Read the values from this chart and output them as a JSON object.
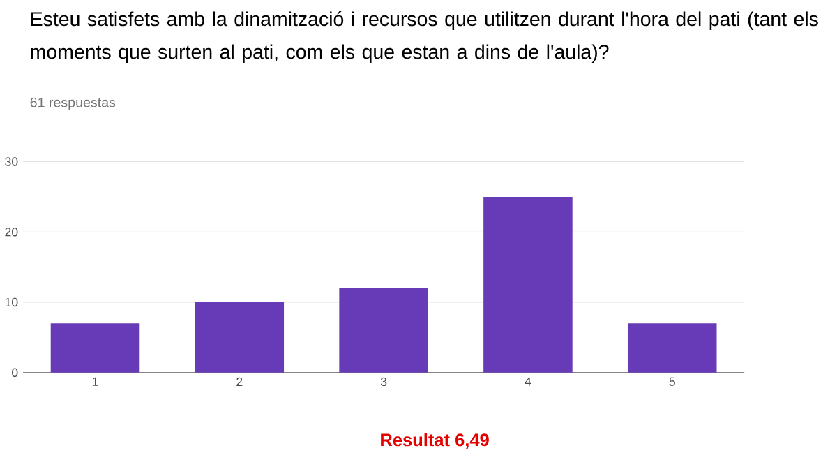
{
  "chart_data": {
    "type": "bar",
    "title": "Esteu satisfets amb la dinamització i recursos que utilitzen durant l'hora del pati (tant els moments que surten al pati, com els que estan a dins de l'aula)?",
    "subtitle": "61 respuestas",
    "categories": [
      "1",
      "2",
      "3",
      "4",
      "5"
    ],
    "values": [
      7,
      10,
      12,
      25,
      7
    ],
    "color": "#673ab7",
    "ylim": [
      0,
      30
    ],
    "yticks": [
      0,
      10,
      20,
      30
    ],
    "grid": "y",
    "annotations": [
      "Resultat 6,49"
    ]
  }
}
